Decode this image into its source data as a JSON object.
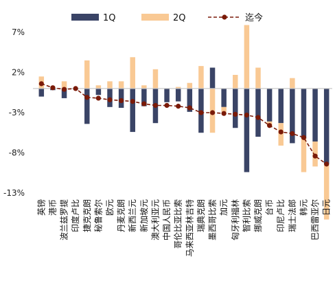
{
  "chart_data": {
    "type": "bar",
    "title": "",
    "xlabel": "",
    "ylabel": "",
    "ylim": [
      -13,
      7
    ],
    "yticks": [
      7,
      2,
      -3,
      -8,
      -13
    ],
    "ytick_labels": [
      "7%",
      "2%",
      "-3%",
      "-8%",
      "-13%"
    ],
    "grid": false,
    "legend_position": "top",
    "categories": [
      "英镑",
      "港币",
      "波兰兹罗提",
      "印度卢比",
      "捷克克朗",
      "秘鲁索尔",
      "欧元",
      "丹麦克朗",
      "新西兰元",
      "新加坡元",
      "澳大利亚元",
      "中国人民币",
      "哥伦比亚比索",
      "马来西亚林吉特",
      "瑞典克朗",
      "墨西哥比索",
      "加元",
      "匈牙利福林",
      "智利比索",
      "挪威克朗",
      "台币",
      "印尼卢比",
      "瑞士法郎",
      "韩元",
      "巴西雷亚尔",
      "日元"
    ],
    "series": [
      {
        "name": "1Q",
        "kind": "bar",
        "color": "#3a4466",
        "values": [
          -1.0,
          -0.2,
          -1.2,
          -0.1,
          -4.4,
          -0.8,
          -2.3,
          -2.4,
          -5.4,
          -2.2,
          -4.3,
          -1.7,
          -1.6,
          -2.9,
          -5.5,
          2.6,
          -2.3,
          -4.9,
          -10.4,
          -6.0,
          -4.1,
          -4.3,
          -6.8,
          -6.2,
          -6.6,
          -9.4
        ]
      },
      {
        "name": "2Q",
        "kind": "bar",
        "color": "#f9c994",
        "values": [
          1.5,
          0.0,
          0.9,
          0.0,
          3.5,
          0.4,
          0.9,
          0.9,
          3.9,
          0.4,
          2.4,
          0.0,
          0.2,
          0.7,
          2.8,
          -5.5,
          -0.6,
          1.7,
          7.9,
          2.6,
          -0.6,
          -2.8,
          1.3,
          -4.2,
          -3.1,
          -6.9
        ]
      },
      {
        "name": "迄今",
        "kind": "line",
        "color": "#7a1a08",
        "values": [
          0.6,
          0.1,
          -0.1,
          0.0,
          -1.1,
          -1.2,
          -1.4,
          -1.5,
          -1.6,
          -1.9,
          -2.1,
          -2.1,
          -2.2,
          -2.4,
          -3.0,
          -3.0,
          -3.1,
          -3.2,
          -3.3,
          -3.6,
          -4.6,
          -5.4,
          -5.6,
          -6.1,
          -8.4,
          -9.4
        ]
      }
    ]
  }
}
